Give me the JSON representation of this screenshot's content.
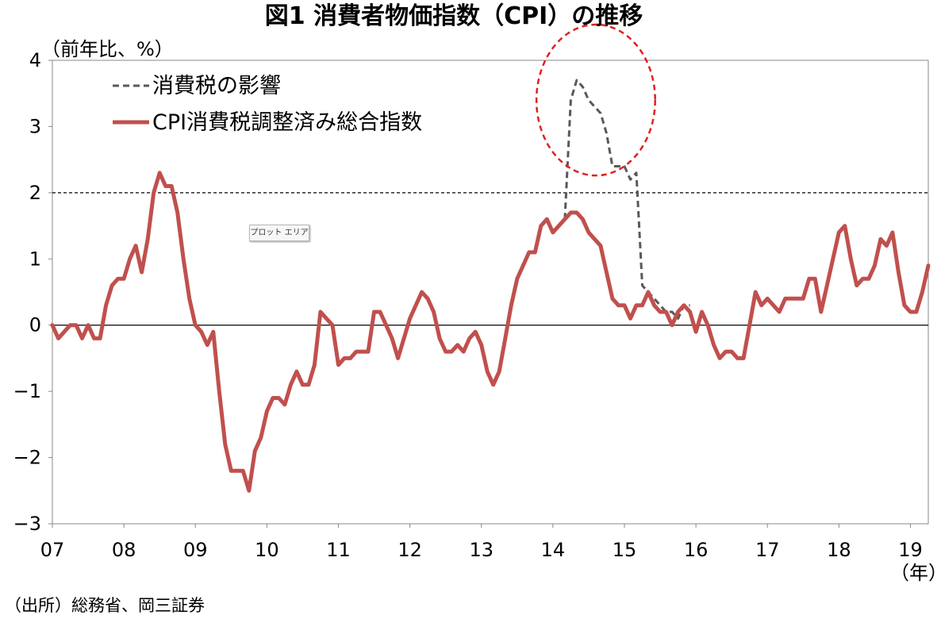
{
  "chart_data": {
    "type": "line",
    "title": "図1 消費者物価指数（CPI）の推移",
    "ylabel": "（前年比、%）",
    "xlabel": "（年）",
    "source": "（出所）総務省、岡三証券",
    "plot_label": "プロット エリア",
    "ylim": [
      -3,
      4
    ],
    "y_ticks": [
      "4",
      "3",
      "2",
      "1",
      "0",
      "−1",
      "−2",
      "−3"
    ],
    "y_tick_values": [
      4,
      3,
      2,
      1,
      0,
      -1,
      -2,
      -3
    ],
    "x_range": [
      2007.0,
      2019.25
    ],
    "x_ticks": [
      "07",
      "08",
      "09",
      "10",
      "11",
      "12",
      "13",
      "14",
      "15",
      "16",
      "17",
      "18",
      "19"
    ],
    "x_tick_values": [
      2007,
      2008,
      2009,
      2010,
      2011,
      2012,
      2013,
      2014,
      2015,
      2016,
      2017,
      2018,
      2019
    ],
    "reference_line": 2,
    "grid": false,
    "legend_placement": "top-left",
    "series": [
      {
        "name": "消費税の影響",
        "style": "dashed",
        "color": "#595959",
        "x": [
          2014.167,
          2014.25,
          2014.333,
          2014.417,
          2014.5,
          2014.583,
          2014.667,
          2014.75,
          2014.833,
          2014.917,
          2015.0,
          2015.083,
          2015.167,
          2015.25,
          2015.333,
          2015.417,
          2015.5,
          2015.583,
          2015.667,
          2015.75,
          2015.833,
          2015.917
        ],
        "values": [
          1.6,
          3.4,
          3.7,
          3.6,
          3.4,
          3.3,
          3.2,
          2.9,
          2.4,
          2.4,
          2.4,
          2.2,
          2.3,
          0.6,
          0.5,
          0.4,
          0.3,
          0.2,
          0.2,
          0.1,
          0.3,
          0.3
        ]
      },
      {
        "name": "CPI消費税調整済み総合指数",
        "style": "solid",
        "color": "#c0504d",
        "start": 2007.0,
        "step": 0.08333,
        "values": [
          0.0,
          -0.2,
          -0.1,
          0.0,
          0.0,
          -0.2,
          0.0,
          -0.2,
          -0.2,
          0.3,
          0.6,
          0.7,
          0.7,
          1.0,
          1.2,
          0.8,
          1.3,
          2.0,
          2.3,
          2.1,
          2.1,
          1.7,
          1.0,
          0.4,
          0.0,
          -0.1,
          -0.3,
          -0.1,
          -1.0,
          -1.8,
          -2.2,
          -2.2,
          -2.2,
          -2.5,
          -1.9,
          -1.7,
          -1.3,
          -1.1,
          -1.1,
          -1.2,
          -0.9,
          -0.7,
          -0.9,
          -0.9,
          -0.6,
          0.2,
          0.1,
          0.0,
          -0.6,
          -0.5,
          -0.5,
          -0.4,
          -0.4,
          -0.4,
          0.2,
          0.2,
          0.0,
          -0.2,
          -0.5,
          -0.2,
          0.1,
          0.3,
          0.5,
          0.4,
          0.2,
          -0.2,
          -0.4,
          -0.4,
          -0.3,
          -0.4,
          -0.2,
          -0.1,
          -0.3,
          -0.7,
          -0.9,
          -0.7,
          -0.2,
          0.3,
          0.7,
          0.9,
          1.1,
          1.1,
          1.5,
          1.6,
          1.4,
          1.5,
          1.6,
          1.7,
          1.7,
          1.6,
          1.4,
          1.3,
          1.2,
          0.8,
          0.4,
          0.3,
          0.3,
          0.1,
          0.3,
          0.3,
          0.5,
          0.3,
          0.2,
          0.2,
          0.0,
          0.2,
          0.3,
          0.2,
          -0.1,
          0.2,
          0.0,
          -0.3,
          -0.5,
          -0.4,
          -0.4,
          -0.5,
          -0.5,
          0.0,
          0.5,
          0.3,
          0.4,
          0.3,
          0.2,
          0.4,
          0.4,
          0.4,
          0.4,
          0.7,
          0.7,
          0.2,
          0.6,
          1.0,
          1.4,
          1.5,
          1.0,
          0.6,
          0.7,
          0.7,
          0.9,
          1.3,
          1.2,
          1.4,
          0.8,
          0.3,
          0.2,
          0.2,
          0.5,
          0.9
        ]
      }
    ],
    "highlight": {
      "shape": "ellipse",
      "style": "dashed",
      "color": "#e02020",
      "center_x": 2014.6,
      "center_y": 3.4,
      "rx_years": 0.83,
      "ry_units": 1.14
    }
  }
}
